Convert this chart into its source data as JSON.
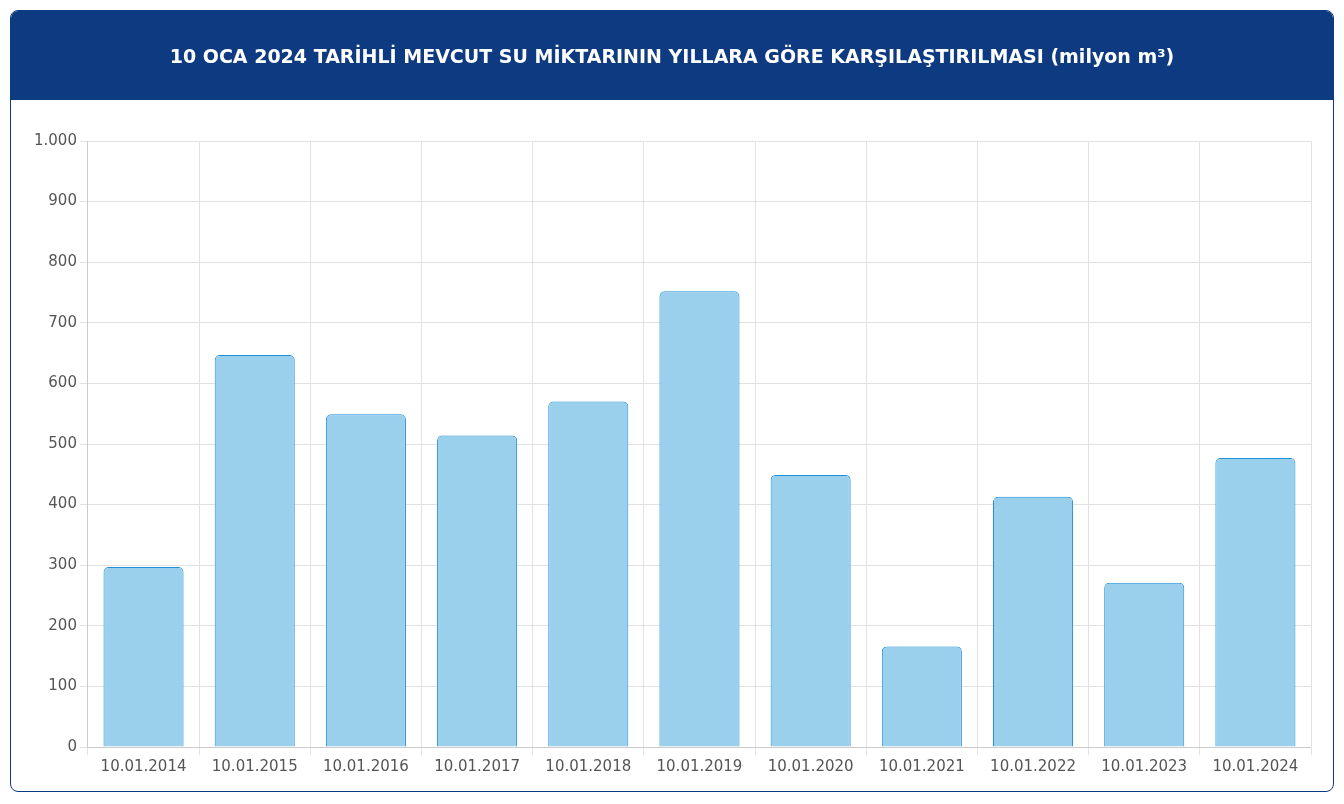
{
  "chart_data": {
    "type": "bar",
    "title": "10 OCA 2024 TARİHLİ MEVCUT SU MİKTARININ YILLARA GÖRE KARŞILAŞTIRILMASI (milyon m³)",
    "categories": [
      "10.01.2014",
      "10.01.2015",
      "10.01.2016",
      "10.01.2017",
      "10.01.2018",
      "10.01.2019",
      "10.01.2020",
      "10.01.2021",
      "10.01.2022",
      "10.01.2023",
      "10.01.2024"
    ],
    "values": [
      297,
      647,
      549,
      514,
      570,
      752,
      449,
      166,
      413,
      271,
      477
    ],
    "color": "#9ad0eb",
    "ylim": [
      0,
      1000
    ],
    "yticks": [
      0,
      100,
      200,
      300,
      400,
      500,
      600,
      700,
      800,
      900,
      {
        "value": 1000,
        "label": "1.000"
      }
    ],
    "grid": true
  }
}
